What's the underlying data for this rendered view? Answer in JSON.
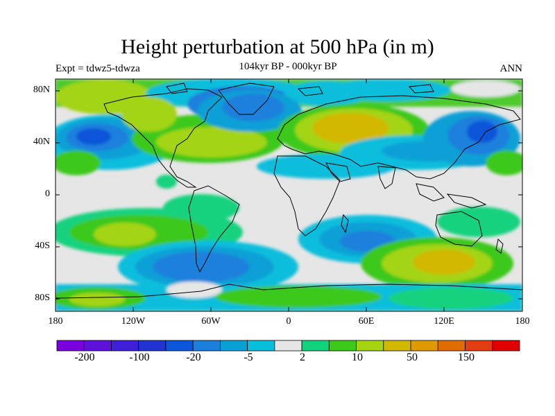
{
  "title": "Height perturbation at 500 hPa (in m)",
  "subtitle_left": "Expt = tdwz5-tdwza",
  "subtitle_center": "104kyr BP - 000kyr BP",
  "subtitle_right": "ANN",
  "map": {
    "projection": "cylindrical-equidistant",
    "lon_range": [
      -180,
      180
    ],
    "lat_range": [
      -90,
      90
    ],
    "lat_ticks": [
      "80N",
      "40N",
      "0",
      "40S",
      "80S"
    ],
    "lon_ticks": [
      "180",
      "120W",
      "60W",
      "0",
      "60E",
      "120E",
      "180"
    ]
  },
  "colorbar": {
    "colors": [
      "#7a00dc",
      "#5e12d8",
      "#4020d6",
      "#2234d0",
      "#0a55d8",
      "#1a80dc",
      "#0aa0d6",
      "#08bedc",
      "#e6e6e6",
      "#12d27e",
      "#3ec81a",
      "#a4d412",
      "#d2b800",
      "#de9a00",
      "#e06c00",
      "#e03e10",
      "#e00000"
    ],
    "labels": [
      "-200",
      "-100",
      "-20",
      "-5",
      "2",
      "10",
      "50",
      "150"
    ]
  }
}
